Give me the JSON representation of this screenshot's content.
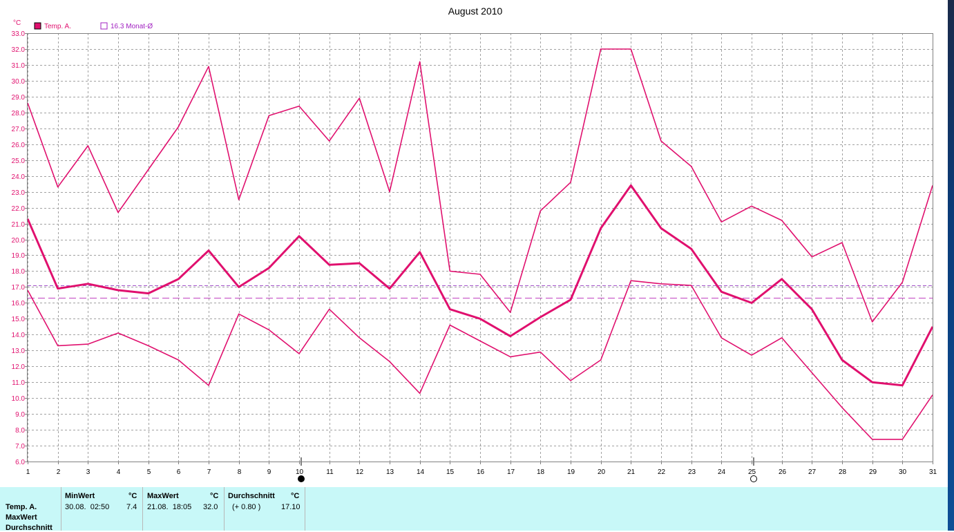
{
  "chart_data": {
    "type": "line",
    "title": "August 2010",
    "unit": "°C",
    "legend": [
      {
        "label": "Temp. A.",
        "style": "filled-square",
        "color": "#e0106e"
      },
      {
        "label": "16.3 Monat-Ø",
        "style": "hollow-square",
        "color": "#a020c0"
      }
    ],
    "x": [
      1,
      2,
      3,
      4,
      5,
      6,
      7,
      8,
      9,
      10,
      11,
      12,
      13,
      14,
      15,
      16,
      17,
      18,
      19,
      20,
      21,
      22,
      23,
      24,
      25,
      26,
      27,
      28,
      29,
      30,
      31
    ],
    "ylim": [
      6.0,
      33.0
    ],
    "ytick_step": 1.0,
    "grid": true,
    "series": [
      {
        "role": "max",
        "values": [
          28.6,
          23.3,
          25.9,
          21.7,
          24.4,
          27.1,
          30.9,
          22.5,
          27.8,
          28.4,
          26.2,
          28.9,
          23.0,
          31.2,
          18.0,
          17.8,
          15.4,
          21.8,
          23.6,
          32.0,
          32.0,
          26.2,
          24.6,
          21.1,
          22.1,
          21.2,
          18.9,
          19.8,
          14.8,
          17.3,
          23.4
        ]
      },
      {
        "role": "average",
        "values": [
          21.3,
          16.9,
          17.2,
          16.8,
          16.6,
          17.5,
          19.3,
          17.0,
          18.2,
          20.2,
          18.4,
          18.5,
          16.9,
          19.2,
          15.6,
          15.0,
          13.9,
          15.1,
          16.2,
          20.7,
          23.4,
          20.7,
          19.4,
          16.7,
          16.0,
          17.5,
          15.6,
          12.4,
          11.0,
          10.8,
          14.5
        ]
      },
      {
        "role": "min",
        "values": [
          16.8,
          13.3,
          13.4,
          14.1,
          13.3,
          12.4,
          10.8,
          15.3,
          14.3,
          12.8,
          15.6,
          13.8,
          12.3,
          10.3,
          14.6,
          13.6,
          12.6,
          12.9,
          11.1,
          12.4,
          17.4,
          17.2,
          17.1,
          13.8,
          12.7,
          13.8,
          11.6,
          9.4,
          7.4,
          7.4,
          10.2
        ]
      }
    ],
    "reference_lines": [
      {
        "value": 17.1,
        "color": "#a050c8",
        "dash": "short"
      },
      {
        "value": 16.3,
        "color": "#c040c0",
        "dash": "long"
      }
    ],
    "moon_phases": [
      {
        "day": 10,
        "phase": "new-moon"
      },
      {
        "day": 25,
        "phase": "full-moon"
      }
    ]
  },
  "stats": {
    "row_labels": [
      "Temp. A.",
      "MaxWert",
      "Durchschnitt"
    ],
    "min": {
      "header": "MinWert",
      "unit": "°C",
      "date": "30.08.  02:50",
      "value": "7.4"
    },
    "max": {
      "header": "MaxWert",
      "unit": "°C",
      "date": "21.08.  18:05",
      "value": "32.0"
    },
    "avg": {
      "header": "Durchschnitt",
      "unit": "°C",
      "delta": "(+ 0.80 )",
      "value": "17.10"
    }
  }
}
